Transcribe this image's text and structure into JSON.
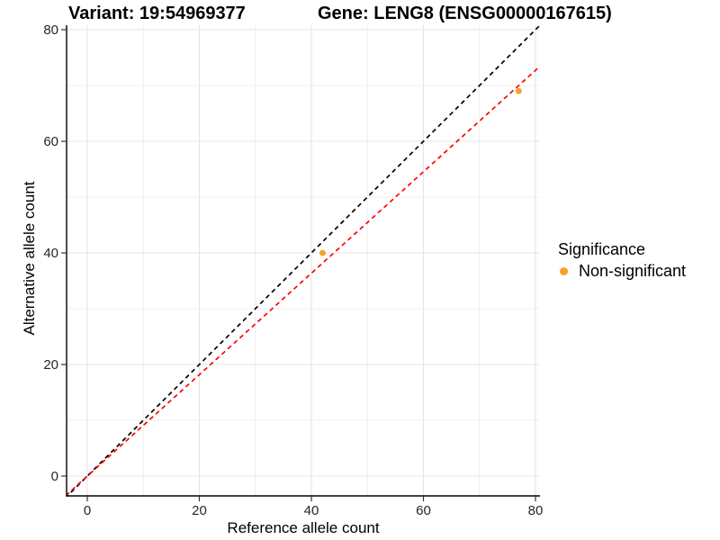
{
  "chart_data": {
    "type": "scatter",
    "title_left": "Variant: 19:54969377",
    "title_right": "Gene: LENG8 (ENSG00000167615)",
    "xlabel": "Reference allele count",
    "ylabel": "Alternative allele count",
    "x_ticks": [
      0,
      20,
      40,
      60,
      80
    ],
    "y_ticks": [
      0,
      20,
      40,
      60,
      80
    ],
    "x_minor_ticks": [
      10,
      30,
      50,
      70
    ],
    "y_minor_ticks": [
      10,
      30,
      50,
      70
    ],
    "xlim": [
      -3.7,
      80.8
    ],
    "ylim": [
      -3.5,
      80.8
    ],
    "grid": true,
    "legend": {
      "title": "Significance",
      "position": "right",
      "items": [
        {
          "label": "Non-significant",
          "color": "#F9A02B"
        }
      ]
    },
    "series": [
      {
        "name": "Non-significant",
        "color": "#F9A02B",
        "points": [
          {
            "x": 42,
            "y": 40
          },
          {
            "x": 77,
            "y": 69
          }
        ]
      }
    ],
    "reference_lines": [
      {
        "name": "identity",
        "slope": 1,
        "intercept": 0,
        "color": "#000000",
        "dashed": true
      },
      {
        "name": "fit",
        "slope": 0.909,
        "intercept": 0,
        "color": "#FF0000",
        "dashed": true
      }
    ],
    "colors": {
      "background": "#FFFFFF",
      "grid_major": "#E4E4E4",
      "grid_minor": "#EFEFEF",
      "axis_line": "#000000",
      "tick_mark": "#333333",
      "tick_text": "#262626"
    }
  }
}
